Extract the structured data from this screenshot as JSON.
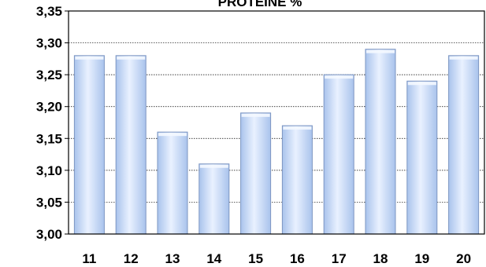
{
  "chart_data": {
    "type": "bar",
    "title": "PROTEINE %",
    "categories": [
      "11",
      "12",
      "13",
      "14",
      "15",
      "16",
      "17",
      "18",
      "19",
      "20"
    ],
    "values": [
      3.28,
      3.28,
      3.16,
      3.11,
      3.19,
      3.17,
      3.25,
      3.29,
      3.24,
      3.28
    ],
    "y_ticks": [
      "3,00",
      "3,05",
      "3,10",
      "3,15",
      "3,20",
      "3,25",
      "3,30",
      "3,35"
    ],
    "ylim": [
      3.0,
      3.35
    ],
    "xlabel": "",
    "ylabel": "",
    "grid": true,
    "legend": "none",
    "colors": {
      "bar_fill_light": "#e9f1ff",
      "bar_fill_dark": "#a9c3ec",
      "bar_edge": "#7d96c2",
      "grid": "#000000",
      "axis": "#000000"
    }
  }
}
